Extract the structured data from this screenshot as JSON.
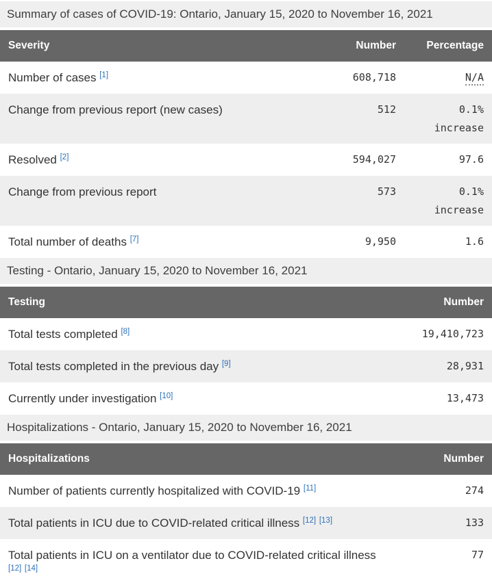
{
  "page_title": "Summary of cases of COVID-19 - Ontario",
  "colors": {
    "header_background": "#666666",
    "header_text": "#ffffff",
    "caption_background": "#efefef",
    "stripe_background": "#eeeeee",
    "body_text": "#333333",
    "footnote_link": "#2b71b8"
  },
  "tables": [
    {
      "caption": "Summary of cases of COVID-19: Ontario, January 15, 2020 to November 16, 2021",
      "columns": [
        "Severity",
        "Number",
        "Percentage"
      ],
      "rows": [
        {
          "label": "Number of cases",
          "footnotes": [
            "[1]"
          ],
          "number": "608,718",
          "percentage": "N/A",
          "percentage_abbr": true
        },
        {
          "label": "Change from previous report (new cases)",
          "footnotes": [],
          "number": "512",
          "percentage": "0.1%",
          "percentage_note": "increase"
        },
        {
          "label": "Resolved",
          "footnotes": [
            "[2]"
          ],
          "number": "594,027",
          "percentage": "97.6"
        },
        {
          "label": "Change from previous report",
          "footnotes": [],
          "number": "573",
          "percentage": "0.1%",
          "percentage_note": "increase"
        },
        {
          "label": "Total number of deaths",
          "footnotes": [
            "[7]"
          ],
          "number": "9,950",
          "percentage": "1.6"
        }
      ]
    },
    {
      "caption": "Testing - Ontario, January 15, 2020 to November 16, 2021",
      "columns": [
        "Testing",
        "Number"
      ],
      "rows": [
        {
          "label": "Total tests completed",
          "footnotes": [
            "[8]"
          ],
          "number": "19,410,723"
        },
        {
          "label": "Total tests completed in the previous day",
          "footnotes": [
            "[9]"
          ],
          "number": "28,931"
        },
        {
          "label": "Currently under investigation",
          "footnotes": [
            "[10]"
          ],
          "number": "13,473"
        }
      ]
    },
    {
      "caption": "Hospitalizations - Ontario, January 15, 2020 to November 16, 2021",
      "columns": [
        "Hospitalizations",
        "Number"
      ],
      "rows": [
        {
          "label": "Number of patients currently hospitalized with COVID-19",
          "footnotes": [
            "[11]"
          ],
          "number": "274"
        },
        {
          "label": "Total patients in ICU due to COVID-related critical illness",
          "footnotes": [
            "[12]",
            "[13]"
          ],
          "number": "133"
        },
        {
          "label": "Total patients in ICU on a ventilator due to COVID-related critical illness",
          "footnotes": [
            "[12]",
            "[14]"
          ],
          "number": "77"
        }
      ]
    }
  ]
}
